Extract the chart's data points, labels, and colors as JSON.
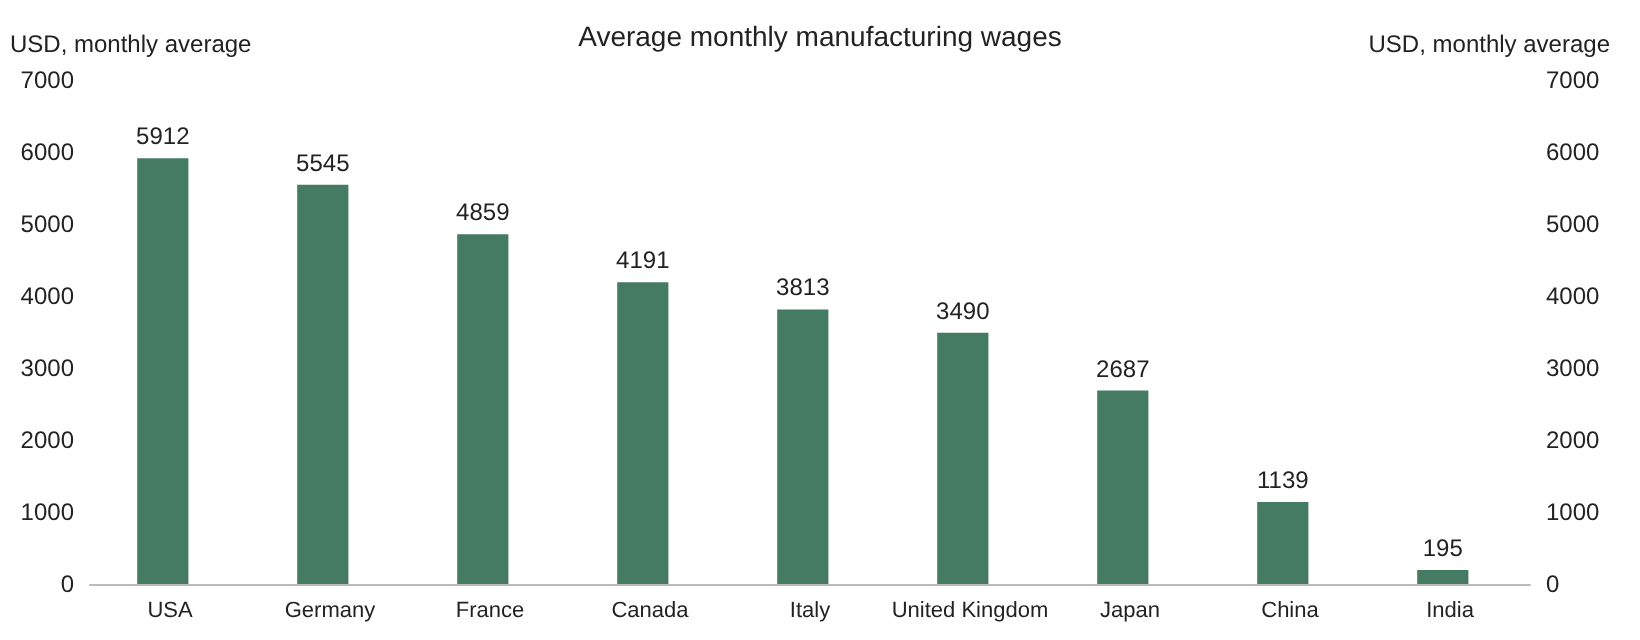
{
  "chart_data": {
    "type": "bar",
    "title": "Average monthly manufacturing wages",
    "ylabel": "USD, monthly average",
    "y2label": "USD, monthly average",
    "categories": [
      "USA",
      "Germany",
      "France",
      "Canada",
      "Italy",
      "United Kingdom",
      "Japan",
      "China",
      "India"
    ],
    "values": [
      5912,
      5545,
      4859,
      4191,
      3813,
      3490,
      2687,
      1139,
      195
    ],
    "color": "#457b63",
    "ylim": [
      0,
      7000
    ],
    "yticks": [
      0,
      1000,
      2000,
      3000,
      4000,
      5000,
      6000,
      7000
    ],
    "y2lim": [
      0,
      7000
    ],
    "y2ticks": [
      0,
      1000,
      2000,
      3000,
      4000,
      5000,
      6000,
      7000
    ],
    "grid": false,
    "data_labels": true
  }
}
